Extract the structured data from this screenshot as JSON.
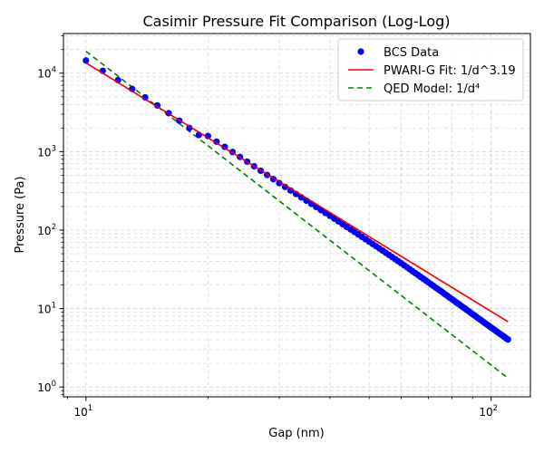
{
  "chart_data": {
    "type": "scatter",
    "title": "Casimir Pressure Fit Comparison (Log-Log)",
    "xlabel": "Gap (nm)",
    "ylabel": "Pressure (Pa)",
    "xscale": "log",
    "yscale": "log",
    "xlim": [
      8.8,
      125
    ],
    "ylim": [
      0.75,
      32000
    ],
    "grid": true,
    "legend_position": "top-right",
    "x_ticks": [
      {
        "value": 10,
        "base": "10",
        "exp": "1"
      },
      {
        "value": 100,
        "base": "10",
        "exp": "2"
      }
    ],
    "y_ticks": [
      {
        "value": 1,
        "base": "10",
        "exp": "0"
      },
      {
        "value": 10,
        "base": "10",
        "exp": "1"
      },
      {
        "value": 100,
        "base": "10",
        "exp": "2"
      },
      {
        "value": 1000,
        "base": "10",
        "exp": "3"
      },
      {
        "value": 10000,
        "base": "10",
        "exp": "4"
      }
    ],
    "series": [
      {
        "name": "BCS Data",
        "kind": "scatter",
        "color": "#0000ff",
        "x": [
          10,
          11,
          12,
          13,
          14,
          15,
          16,
          17,
          18,
          19,
          20,
          21,
          22,
          23,
          24,
          25,
          26,
          27,
          28,
          29,
          30,
          31,
          32,
          33,
          34,
          35,
          36,
          37,
          38,
          39,
          40,
          41,
          42,
          43,
          44,
          45,
          46,
          47,
          48,
          49,
          50,
          51,
          52,
          53,
          54,
          55,
          56,
          57,
          58,
          59,
          60,
          61,
          62,
          63,
          64,
          65,
          66,
          67,
          68,
          69,
          70,
          71,
          72,
          73,
          74,
          75,
          76,
          77,
          78,
          79,
          80,
          81,
          82,
          83,
          84,
          85,
          86,
          87,
          88,
          89,
          90,
          91,
          92,
          93,
          94,
          95,
          96,
          97,
          98,
          99,
          100,
          101,
          102,
          103,
          104,
          105,
          106,
          107,
          108,
          109,
          110
        ],
        "y": [
          14500,
          10700,
          8150,
          6300,
          4920,
          3880,
          3090,
          2480,
          2000,
          1630,
          1580,
          1340,
          1150,
          990,
          855,
          745,
          650,
          570,
          503,
          446,
          397,
          355,
          319,
          288,
          261,
          237,
          216,
          197,
          180,
          165,
          152,
          140,
          129,
          119,
          110,
          102,
          94.8,
          88.1,
          82.0,
          76.4,
          71.3,
          66.6,
          62.3,
          58.3,
          54.7,
          51.3,
          48.2,
          45.3,
          42.6,
          40.1,
          37.8,
          35.6,
          33.6,
          31.7,
          29.9,
          28.3,
          26.8,
          25.3,
          24.0,
          22.8,
          21.6,
          20.5,
          19.5,
          18.5,
          17.6,
          16.8,
          16.0,
          15.2,
          14.5,
          13.8,
          13.2,
          12.6,
          12.0,
          11.5,
          11.0,
          10.5,
          10.1,
          9.65,
          9.25,
          8.87,
          8.5,
          8.16,
          7.83,
          7.52,
          7.23,
          6.95,
          6.68,
          6.43,
          6.19,
          5.96,
          5.74,
          5.53,
          5.33,
          5.14,
          4.96,
          4.79,
          4.62,
          4.47,
          4.32,
          4.17,
          4.04
        ]
      },
      {
        "name": "PWARI-G Fit: 1/d^3.19",
        "kind": "line",
        "color": "#ff0000",
        "dash": "",
        "x": [
          10,
          110
        ],
        "y": [
          13500,
          6.8
        ]
      },
      {
        "name": "QED Model: 1/d⁴",
        "kind": "line",
        "color": "#008000",
        "dash": "6,4",
        "x": [
          10,
          110
        ],
        "y": [
          19000,
          1.3
        ]
      }
    ]
  }
}
